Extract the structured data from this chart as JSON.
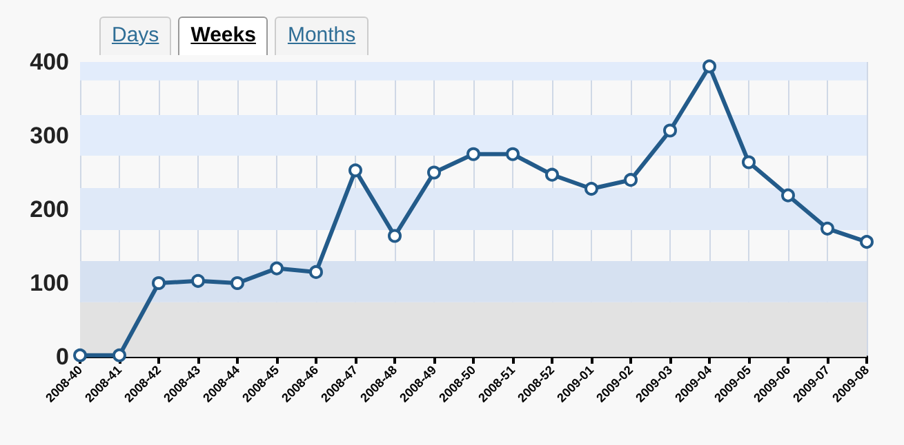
{
  "chart_data": {
    "type": "line",
    "annotations": [
      "Days",
      "Weeks",
      "Months"
    ],
    "categories": [
      "2008-40",
      "2008-41",
      "2008-42",
      "2008-43",
      "2008-44",
      "2008-45",
      "2008-46",
      "2008-47",
      "2008-48",
      "2008-49",
      "2008-50",
      "2008-51",
      "2008-52",
      "2009-01",
      "2009-02",
      "2009-03",
      "2009-04",
      "2009-05",
      "2009-06",
      "2009-07",
      "2009-08"
    ],
    "series": [
      {
        "color": "#235b8a",
        "values": [
          2,
          2,
          100,
          103,
          100,
          120,
          115,
          253,
          164,
          250,
          275,
          275,
          247,
          228,
          240,
          307,
          394,
          264,
          219,
          174,
          156
        ]
      }
    ],
    "ylim": [
      0,
      400
    ],
    "yticks": [
      0,
      100,
      200,
      300,
      400
    ],
    "bands": [
      {
        "axis": "y",
        "from": 0,
        "to": 74,
        "color": "#e2e2e2"
      },
      {
        "axis": "y",
        "from": 74,
        "to": 130,
        "color": "#d6e1f1"
      },
      {
        "axis": "y",
        "from": 172,
        "to": 229,
        "color": "#dfe9f8"
      },
      {
        "axis": "y",
        "from": 273,
        "to": 328,
        "color": "#e2ecfb"
      },
      {
        "axis": "y",
        "from": 375,
        "to": 400,
        "color": "#e2ecfb"
      }
    ],
    "grid": "x",
    "marker": "circle",
    "line_style": "solid"
  }
}
